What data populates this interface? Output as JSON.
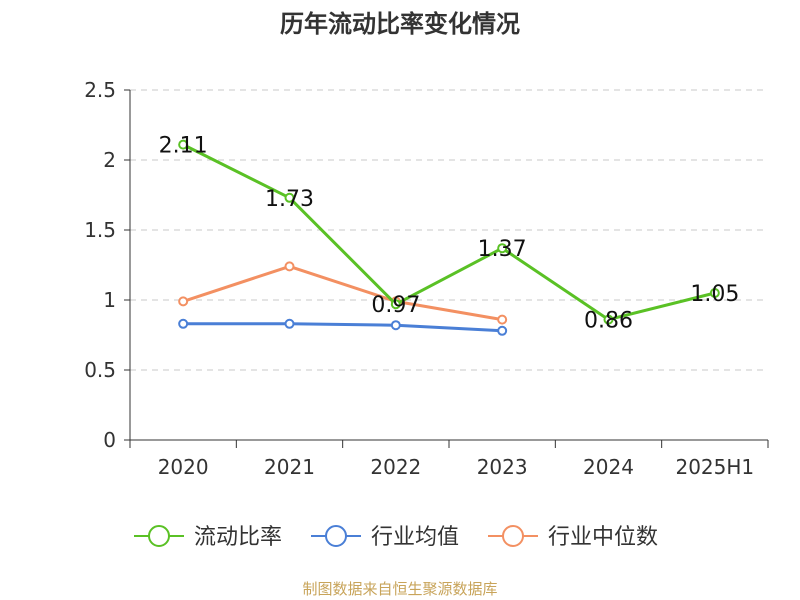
{
  "title": "历年流动比率变化情况",
  "source": "制图数据来自恒生聚源数据库",
  "chart_data": {
    "type": "line",
    "title": "历年流动比率变化情况",
    "categories": [
      "2020",
      "2021",
      "2022",
      "2023",
      "2024",
      "2025H1"
    ],
    "ylim": [
      0,
      2.5
    ],
    "yticks": [
      "0",
      "0.5",
      "1",
      "1.5",
      "2",
      "2.5"
    ],
    "grid": true,
    "legend_position": "bottom",
    "series": [
      {
        "name": "流动比率",
        "color": "#5ac125",
        "values": [
          2.11,
          1.73,
          0.97,
          1.37,
          0.86,
          1.05
        ],
        "labels": [
          "2.11",
          "1.73",
          "0.97",
          "1.37",
          "0.86",
          "1.05"
        ]
      },
      {
        "name": "行业均值",
        "color": "#4a7fd6",
        "values": [
          0.83,
          0.83,
          0.82,
          0.78,
          null,
          null
        ]
      },
      {
        "name": "行业中位数",
        "color": "#f39062",
        "values": [
          0.99,
          1.24,
          0.99,
          0.86,
          null,
          null
        ]
      }
    ]
  }
}
